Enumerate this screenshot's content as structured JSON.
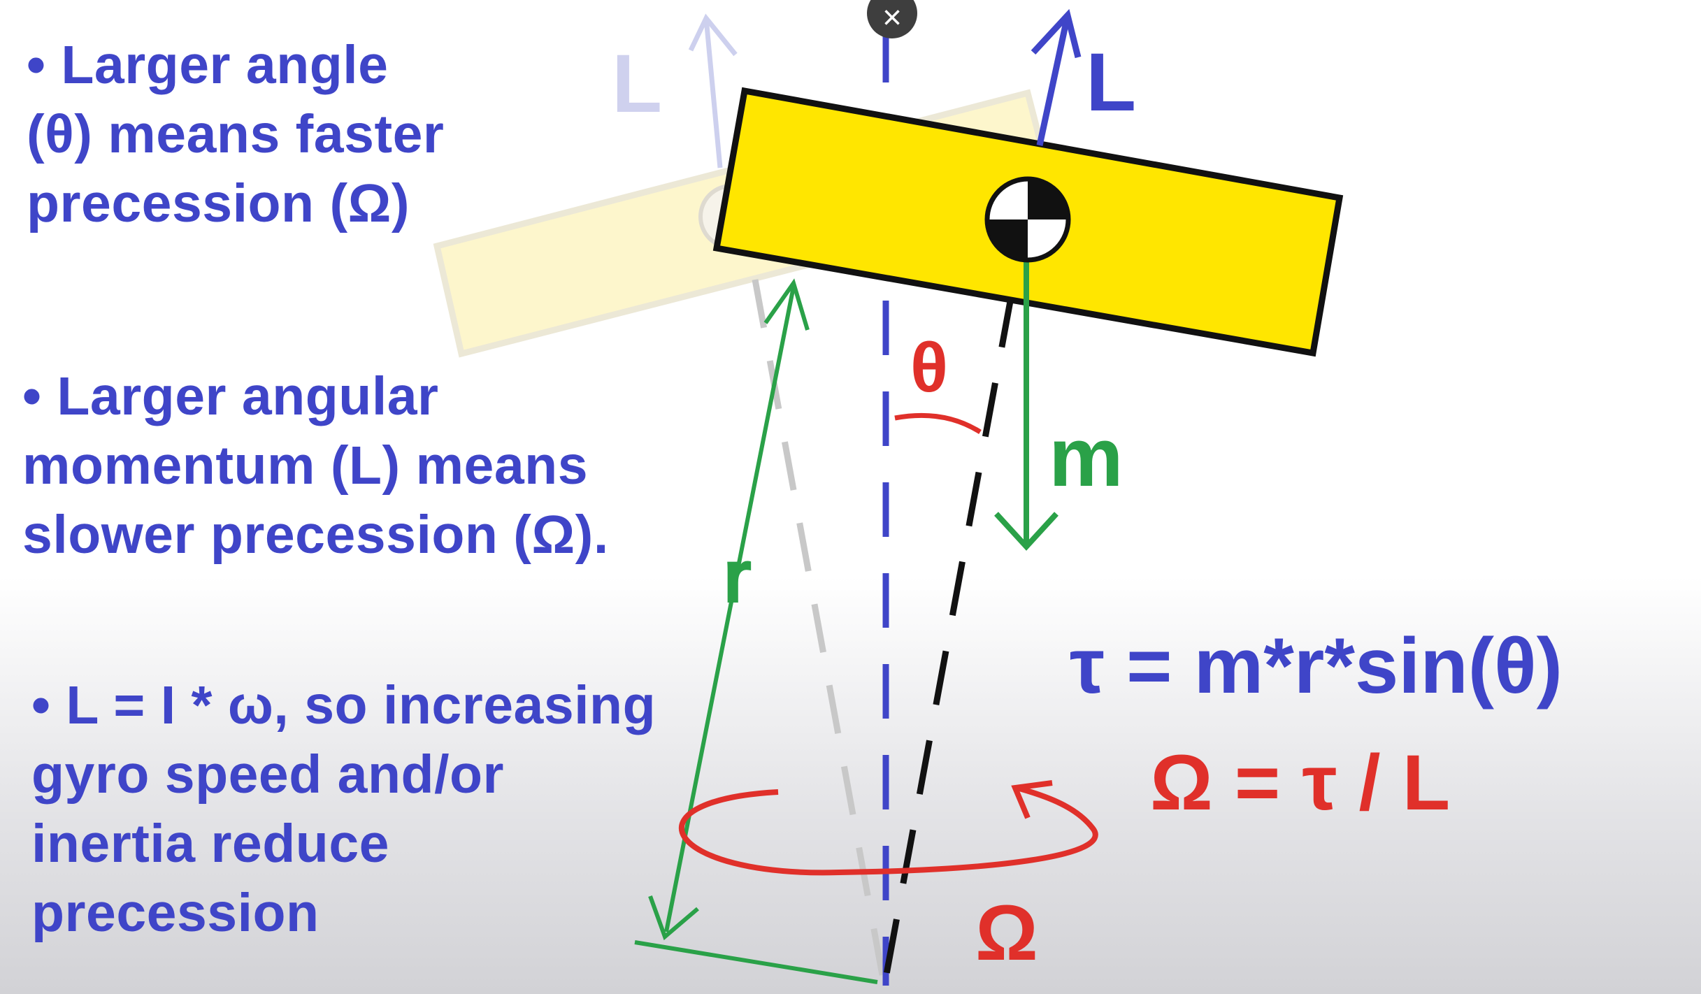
{
  "bullets": [
    {
      "lines": [
        "• Larger angle",
        "(θ) means faster",
        "precession (Ω)"
      ]
    },
    {
      "lines": [
        "• Larger angular",
        "momentum (L) means",
        "slower precession (Ω)."
      ]
    },
    {
      "lines": [
        "• L = I * ω, so increasing",
        "gyro speed and/or",
        "inertia reduce",
        "precession"
      ]
    }
  ],
  "equations": {
    "torque": "τ = m*r*sin(θ)",
    "precession": "Ω = τ / L"
  },
  "diagram_labels": {
    "angular_momentum_faded": "L",
    "angular_momentum": "L",
    "angle": "θ",
    "mass": "m",
    "radius": "r",
    "precession_rate": "Ω"
  },
  "colors": {
    "text_blue": "#3f45c8",
    "text_red": "#e0302a",
    "green": "#2aa148",
    "gyro_yellow": "#ffe600",
    "faded_gyro": "#fdf5c8"
  },
  "close_button": {
    "icon": "close-icon",
    "glyph": "×"
  }
}
